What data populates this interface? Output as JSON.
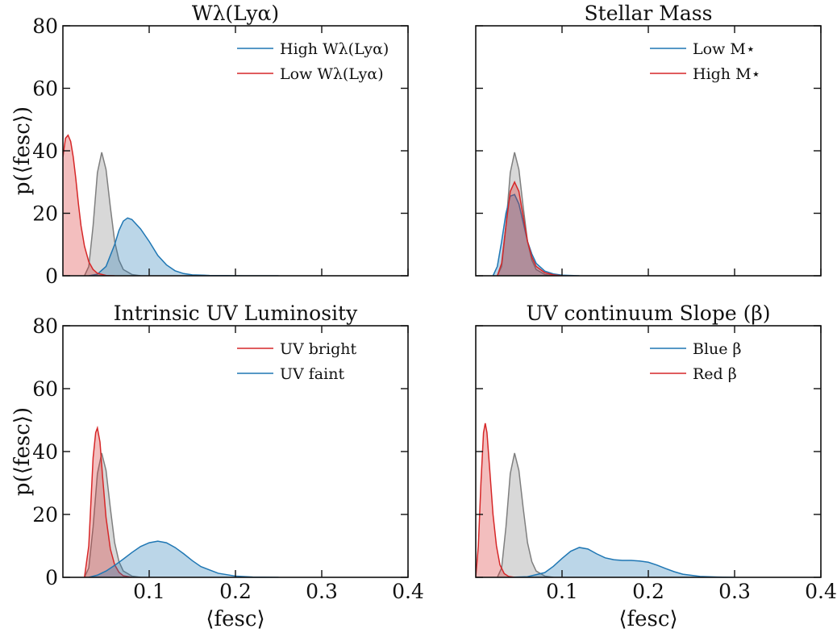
{
  "colors": {
    "red": "#d62728",
    "blue": "#1f77b4",
    "gray": "#7f7f7f"
  },
  "chart_data": [
    {
      "type": "area",
      "title": "Wλ(Lyα)",
      "xlim": [
        0,
        0.4
      ],
      "ylim": [
        0,
        80
      ],
      "xticks": [
        0.1,
        0.2,
        0.3,
        0.4
      ],
      "yticks": [
        0,
        20,
        40,
        60,
        80
      ],
      "xtick_labels_shown": false,
      "ytick_labels_shown": true,
      "xlabel": "",
      "ylabel": "p(⟨fesc⟩)",
      "legend_position": "top-right",
      "series": [
        {
          "name": "High Wλ(Lyα)",
          "color": "blue",
          "x": [
            0.03,
            0.04,
            0.05,
            0.06,
            0.065,
            0.07,
            0.075,
            0.08,
            0.09,
            0.1,
            0.11,
            0.12,
            0.13,
            0.14,
            0.15,
            0.17,
            0.19,
            0.21,
            0.25
          ],
          "y": [
            0,
            0.5,
            3,
            10,
            14.5,
            17.5,
            18.5,
            18,
            15,
            11,
            6.5,
            3.5,
            1.6,
            0.7,
            0.3,
            0.1,
            0.05,
            0,
            0
          ],
          "legend": true
        },
        {
          "name": "Low Wλ(Lyα)",
          "color": "red",
          "x": [
            0,
            0.003,
            0.006,
            0.009,
            0.012,
            0.015,
            0.018,
            0.021,
            0.025,
            0.03,
            0.035,
            0.04,
            0.05,
            0.06
          ],
          "y": [
            38,
            44,
            45,
            43,
            38,
            31,
            23,
            16,
            9.5,
            4.5,
            2,
            0.8,
            0.1,
            0
          ],
          "legend": true
        },
        {
          "name": "",
          "color": "gray",
          "x": [
            0.025,
            0.03,
            0.035,
            0.04,
            0.045,
            0.05,
            0.055,
            0.06,
            0.065,
            0.07,
            0.08,
            0.09
          ],
          "y": [
            0,
            3,
            16,
            33,
            39.5,
            34,
            22,
            11,
            5,
            2,
            0.4,
            0
          ],
          "legend": false
        }
      ]
    },
    {
      "type": "area",
      "title": "Stellar Mass",
      "xlim": [
        0,
        0.4
      ],
      "ylim": [
        0,
        80
      ],
      "xticks": [
        0.1,
        0.2,
        0.3,
        0.4
      ],
      "yticks": [
        0,
        20,
        40,
        60,
        80
      ],
      "xtick_labels_shown": false,
      "ytick_labels_shown": false,
      "xlabel": "",
      "ylabel": "",
      "legend_position": "top-right",
      "series": [
        {
          "name": "Low M⋆",
          "color": "blue",
          "x": [
            0.02,
            0.025,
            0.03,
            0.035,
            0.04,
            0.045,
            0.05,
            0.055,
            0.06,
            0.065,
            0.07,
            0.08,
            0.09,
            0.1,
            0.12
          ],
          "y": [
            0,
            3,
            11,
            20,
            25.5,
            26,
            23,
            17,
            11,
            7,
            4,
            1.5,
            0.6,
            0.2,
            0
          ],
          "legend": true
        },
        {
          "name": "High M⋆",
          "color": "red",
          "x": [
            0.025,
            0.03,
            0.035,
            0.04,
            0.045,
            0.05,
            0.055,
            0.06,
            0.065,
            0.07,
            0.08,
            0.09,
            0.1
          ],
          "y": [
            0,
            4,
            16,
            27,
            30,
            27,
            19,
            11,
            6,
            3,
            1,
            0.3,
            0
          ],
          "legend": true
        },
        {
          "name": "",
          "color": "gray",
          "x": [
            0.025,
            0.03,
            0.035,
            0.04,
            0.045,
            0.05,
            0.055,
            0.06,
            0.065,
            0.07,
            0.08,
            0.09
          ],
          "y": [
            0,
            3,
            16,
            33,
            39.5,
            34,
            22,
            11,
            5,
            2,
            0.4,
            0
          ],
          "legend": false
        }
      ]
    },
    {
      "type": "area",
      "title": "Intrinsic UV Luminosity",
      "xlim": [
        0,
        0.4
      ],
      "ylim": [
        0,
        80
      ],
      "xticks": [
        0.1,
        0.2,
        0.3,
        0.4
      ],
      "yticks": [
        0,
        20,
        40,
        60,
        80
      ],
      "xtick_labels_shown": true,
      "ytick_labels_shown": true,
      "xlabel": "⟨fesc⟩",
      "ylabel": "p(⟨fesc⟩)",
      "legend_position": "top-right",
      "series": [
        {
          "name": "UV bright",
          "color": "red",
          "x": [
            0.025,
            0.03,
            0.035,
            0.038,
            0.04,
            0.043,
            0.046,
            0.05,
            0.055,
            0.06,
            0.065,
            0.07,
            0.08
          ],
          "y": [
            0,
            10,
            38,
            46,
            47.5,
            43,
            32,
            19,
            9,
            4,
            1.6,
            0.5,
            0
          ],
          "legend": true
        },
        {
          "name": "UV faint",
          "color": "blue",
          "x": [
            0.03,
            0.04,
            0.05,
            0.06,
            0.07,
            0.08,
            0.09,
            0.1,
            0.11,
            0.12,
            0.13,
            0.14,
            0.15,
            0.16,
            0.18,
            0.2,
            0.22,
            0.25
          ],
          "y": [
            0,
            0.7,
            2,
            3.8,
            5.8,
            7.9,
            9.8,
            11,
            11.5,
            11,
            9.5,
            7.5,
            5.3,
            3.4,
            1.3,
            0.4,
            0.1,
            0
          ],
          "legend": true
        },
        {
          "name": "",
          "color": "gray",
          "x": [
            0.025,
            0.03,
            0.035,
            0.04,
            0.045,
            0.05,
            0.055,
            0.06,
            0.065,
            0.07,
            0.08,
            0.09
          ],
          "y": [
            0,
            3,
            16,
            33,
            39.5,
            34,
            22,
            11,
            5,
            2,
            0.4,
            0
          ],
          "legend": false
        }
      ]
    },
    {
      "type": "area",
      "title": "UV continuum Slope (β)",
      "xlim": [
        0,
        0.4
      ],
      "ylim": [
        0,
        80
      ],
      "xticks": [
        0.1,
        0.2,
        0.3,
        0.4
      ],
      "yticks": [
        0,
        20,
        40,
        60,
        80
      ],
      "xtick_labels_shown": true,
      "ytick_labels_shown": false,
      "xlabel": "⟨fesc⟩",
      "ylabel": "",
      "legend_position": "top-right",
      "series": [
        {
          "name": "Blue β",
          "color": "blue",
          "x": [
            0.04,
            0.06,
            0.08,
            0.09,
            0.1,
            0.11,
            0.12,
            0.13,
            0.14,
            0.15,
            0.16,
            0.17,
            0.18,
            0.19,
            0.2,
            0.21,
            0.22,
            0.23,
            0.24,
            0.26,
            0.28,
            0.3
          ],
          "y": [
            0,
            0.2,
            1.5,
            3.5,
            6,
            8.3,
            9.5,
            9,
            7.5,
            6.2,
            5.6,
            5.4,
            5.4,
            5.2,
            4.8,
            3.9,
            2.8,
            1.8,
            1,
            0.3,
            0.1,
            0
          ],
          "legend": true
        },
        {
          "name": "Red β",
          "color": "red",
          "x": [
            0,
            0.003,
            0.006,
            0.009,
            0.011,
            0.013,
            0.016,
            0.02,
            0.024,
            0.028,
            0.033,
            0.038,
            0.045
          ],
          "y": [
            0,
            10,
            30,
            46,
            49,
            46,
            35,
            20,
            10,
            4,
            1.2,
            0.3,
            0
          ],
          "legend": true
        },
        {
          "name": "",
          "color": "gray",
          "x": [
            0.025,
            0.03,
            0.035,
            0.04,
            0.045,
            0.05,
            0.055,
            0.06,
            0.065,
            0.07,
            0.08,
            0.09
          ],
          "y": [
            0,
            3,
            16,
            33,
            39.5,
            34,
            22,
            11,
            5,
            2,
            0.4,
            0
          ],
          "legend": false
        }
      ]
    }
  ]
}
